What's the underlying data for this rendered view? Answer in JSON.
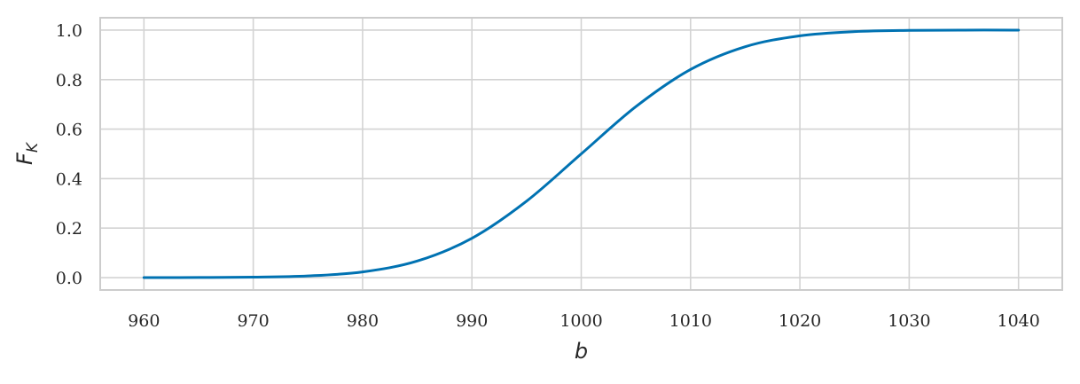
{
  "chart_data": {
    "type": "line",
    "title": "",
    "xlabel": "b",
    "ylabel": "F",
    "ylabel_subscript": "K",
    "xlim": [
      956,
      1044
    ],
    "ylim": [
      -0.05,
      1.05
    ],
    "x_ticks": [
      960,
      970,
      980,
      990,
      1000,
      1010,
      1020,
      1030,
      1040
    ],
    "y_ticks": [
      0.0,
      0.2,
      0.4,
      0.6,
      0.8,
      1.0
    ],
    "x_tick_labels": [
      "960",
      "970",
      "980",
      "990",
      "1000",
      "1010",
      "1020",
      "1030",
      "1040"
    ],
    "y_tick_labels": [
      "0.0",
      "0.2",
      "0.4",
      "0.6",
      "0.8",
      "1.0"
    ],
    "grid": true,
    "series": [
      {
        "color": "#0072b2",
        "x": [
          960,
          965,
          970,
          975,
          980,
          985,
          990,
          995,
          1000,
          1005,
          1010,
          1015,
          1020,
          1025,
          1030,
          1035,
          1040
        ],
        "y": [
          0.0,
          0.0005,
          0.002,
          0.007,
          0.023,
          0.067,
          0.159,
          0.309,
          0.5,
          0.691,
          0.841,
          0.933,
          0.977,
          0.994,
          0.999,
          1.0,
          1.0
        ]
      }
    ]
  }
}
